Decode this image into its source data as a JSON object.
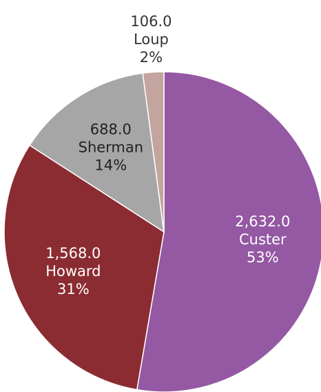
{
  "chart_data": {
    "type": "pie",
    "categories": [
      "Custer",
      "Howard",
      "Sherman",
      "Loup"
    ],
    "values": [
      2632,
      1568,
      688,
      106
    ],
    "value_labels": [
      "2,632.0",
      "1,568.0",
      "688.0",
      "106.0"
    ],
    "percent_labels": [
      "53%",
      "31%",
      "14%",
      "2%"
    ],
    "colors": [
      "#9558a3",
      "#8b2c32",
      "#a6a6a6",
      "#c4a49e"
    ]
  }
}
